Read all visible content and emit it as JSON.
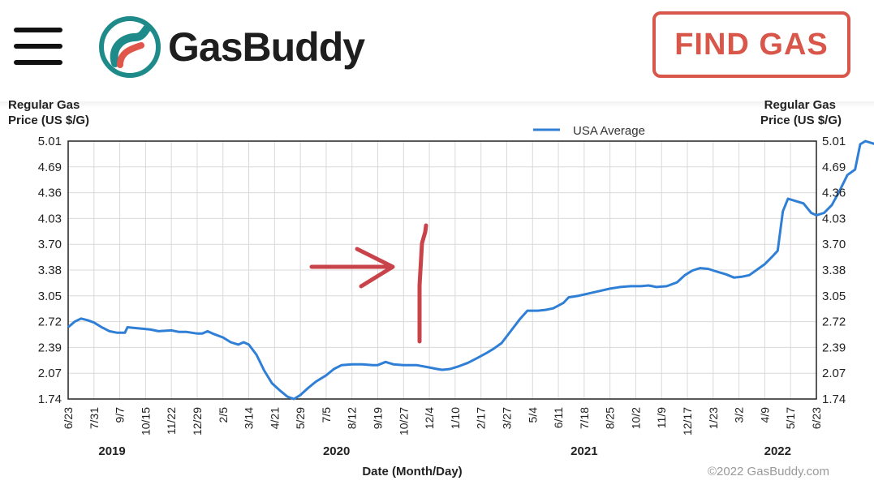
{
  "header": {
    "menu_icon": "hamburger-menu-icon",
    "logo_icon": "gasbuddy-road-logo-icon",
    "brand": "GasBuddy",
    "find_gas_label": "FIND GAS",
    "accent_color": "#d9574a",
    "logo_color": "#1e8a8a"
  },
  "chart_data": {
    "type": "line",
    "title": "",
    "ylabel_top_cut": "Regular Gas",
    "ylabel": "Price (US $/G)",
    "xlabel": "Date (Month/Day)",
    "copyright": "©2022 GasBuddy.com",
    "legend": [
      {
        "name": "USA Average",
        "color": "#2f7fd6"
      }
    ],
    "legend_position": "top",
    "grid": true,
    "ylim": [
      1.74,
      5.01
    ],
    "y_ticks": [
      "5.01",
      "4.69",
      "4.36",
      "4.03",
      "3.70",
      "3.38",
      "3.05",
      "2.72",
      "2.39",
      "2.07",
      "1.74"
    ],
    "x_ticks": [
      "6/23",
      "7/31",
      "9/7",
      "10/15",
      "11/22",
      "12/29",
      "2/5",
      "3/14",
      "4/21",
      "5/29",
      "7/5",
      "8/12",
      "9/19",
      "10/27",
      "12/4",
      "1/10",
      "2/17",
      "3/27",
      "5/4",
      "6/11",
      "7/18",
      "8/25",
      "10/2",
      "11/9",
      "12/17",
      "1/23",
      "3/2",
      "4/9",
      "5/17",
      "6/23"
    ],
    "years": [
      {
        "label": "2019",
        "tick_index": 1.7
      },
      {
        "label": "2020",
        "tick_index": 10.4
      },
      {
        "label": "2021",
        "tick_index": 20
      },
      {
        "label": "2022",
        "tick_index": 27.5
      }
    ],
    "series": [
      {
        "name": "USA Average",
        "points": [
          [
            0,
            2.65
          ],
          [
            0.25,
            2.72
          ],
          [
            0.5,
            2.76
          ],
          [
            0.75,
            2.74
          ],
          [
            1,
            2.71
          ],
          [
            1.3,
            2.65
          ],
          [
            1.6,
            2.6
          ],
          [
            1.9,
            2.58
          ],
          [
            2.2,
            2.58
          ],
          [
            2.3,
            2.65
          ],
          [
            2.6,
            2.64
          ],
          [
            2.9,
            2.63
          ],
          [
            3.2,
            2.62
          ],
          [
            3.5,
            2.6
          ],
          [
            4,
            2.61
          ],
          [
            4.3,
            2.59
          ],
          [
            4.6,
            2.59
          ],
          [
            5,
            2.57
          ],
          [
            5.2,
            2.57
          ],
          [
            5.4,
            2.6
          ],
          [
            5.6,
            2.57
          ],
          [
            6,
            2.52
          ],
          [
            6.3,
            2.46
          ],
          [
            6.6,
            2.43
          ],
          [
            6.8,
            2.46
          ],
          [
            7,
            2.43
          ],
          [
            7.3,
            2.3
          ],
          [
            7.6,
            2.1
          ],
          [
            7.9,
            1.94
          ],
          [
            8.2,
            1.85
          ],
          [
            8.5,
            1.77
          ],
          [
            8.75,
            1.74
          ],
          [
            9,
            1.79
          ],
          [
            9.3,
            1.88
          ],
          [
            9.6,
            1.96
          ],
          [
            10,
            2.04
          ],
          [
            10.3,
            2.12
          ],
          [
            10.6,
            2.17
          ],
          [
            11,
            2.18
          ],
          [
            11.4,
            2.18
          ],
          [
            11.8,
            2.17
          ],
          [
            12,
            2.17
          ],
          [
            12.3,
            2.21
          ],
          [
            12.6,
            2.18
          ],
          [
            13,
            2.17
          ],
          [
            13.5,
            2.17
          ],
          [
            14,
            2.14
          ],
          [
            14.3,
            2.12
          ],
          [
            14.5,
            2.11
          ],
          [
            14.8,
            2.12
          ],
          [
            15.1,
            2.15
          ],
          [
            15.5,
            2.2
          ],
          [
            15.8,
            2.25
          ],
          [
            16.2,
            2.32
          ],
          [
            16.5,
            2.38
          ],
          [
            16.8,
            2.45
          ],
          [
            17.2,
            2.62
          ],
          [
            17.5,
            2.75
          ],
          [
            17.8,
            2.86
          ],
          [
            18.2,
            2.86
          ],
          [
            18.5,
            2.87
          ],
          [
            18.8,
            2.89
          ],
          [
            19.2,
            2.96
          ],
          [
            19.4,
            3.03
          ],
          [
            19.8,
            3.05
          ],
          [
            20.2,
            3.08
          ],
          [
            20.6,
            3.11
          ],
          [
            21,
            3.14
          ],
          [
            21.4,
            3.16
          ],
          [
            21.8,
            3.17
          ],
          [
            22.2,
            3.17
          ],
          [
            22.5,
            3.18
          ],
          [
            22.8,
            3.16
          ],
          [
            23.2,
            3.17
          ],
          [
            23.6,
            3.22
          ],
          [
            23.9,
            3.31
          ],
          [
            24.2,
            3.37
          ],
          [
            24.5,
            3.4
          ],
          [
            24.8,
            3.39
          ],
          [
            25.1,
            3.36
          ],
          [
            25.5,
            3.32
          ],
          [
            25.8,
            3.28
          ],
          [
            26.1,
            3.29
          ],
          [
            26.4,
            3.31
          ],
          [
            26.7,
            3.38
          ],
          [
            27,
            3.45
          ],
          [
            27.3,
            3.55
          ],
          [
            27.5,
            3.62
          ],
          [
            27.7,
            4.12
          ],
          [
            27.9,
            4.28
          ],
          [
            28.2,
            4.25
          ],
          [
            28.5,
            4.22
          ],
          [
            28.8,
            4.1
          ],
          [
            29,
            4.07
          ],
          [
            29.3,
            4.1
          ],
          [
            29.6,
            4.2
          ],
          [
            29.9,
            4.38
          ],
          [
            30.2,
            4.58
          ],
          [
            30.5,
            4.65
          ],
          [
            30.7,
            4.97
          ],
          [
            30.9,
            5.01
          ],
          [
            31.2,
            4.98
          ],
          [
            31.4,
            4.95
          ]
        ]
      }
    ],
    "annotations": {
      "arrow_color": "#c9444a",
      "marker_color": "#c9444a"
    }
  }
}
